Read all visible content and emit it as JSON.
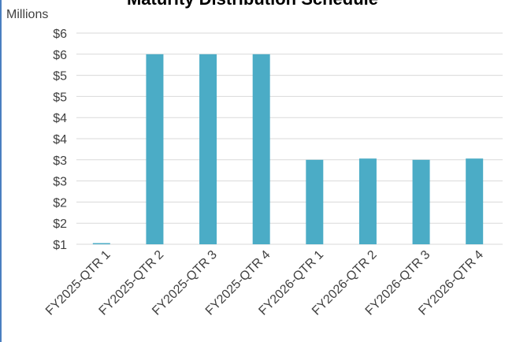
{
  "chart_data": {
    "type": "bar",
    "title": "Maturity Distribution Schedule",
    "units_label": "Millions",
    "categories": [
      "FY2025-QTR 1",
      "FY2025-QTR 2",
      "FY2025-QTR 3",
      "FY2025-QTR 4",
      "FY2026-QTR 1",
      "FY2026-QTR 2",
      "FY2026-QTR 3",
      "FY2026-QTR 4"
    ],
    "values": [
      1.0,
      5.5,
      5.5,
      5.5,
      3.0,
      3.03,
      3.0,
      3.03
    ],
    "ylim": [
      1,
      6
    ],
    "yticks": [
      1,
      1.5,
      2,
      2.5,
      3,
      3.5,
      4,
      4.5,
      5,
      5.5,
      6
    ],
    "ytick_labels": [
      "$1",
      "$2",
      "$2",
      "$3",
      "$3",
      "$4",
      "$4",
      "$5",
      "$5",
      "$6",
      "$6"
    ],
    "grid": true,
    "bar_color": "#4bacc6",
    "grid_color": "#d9d9d9"
  }
}
